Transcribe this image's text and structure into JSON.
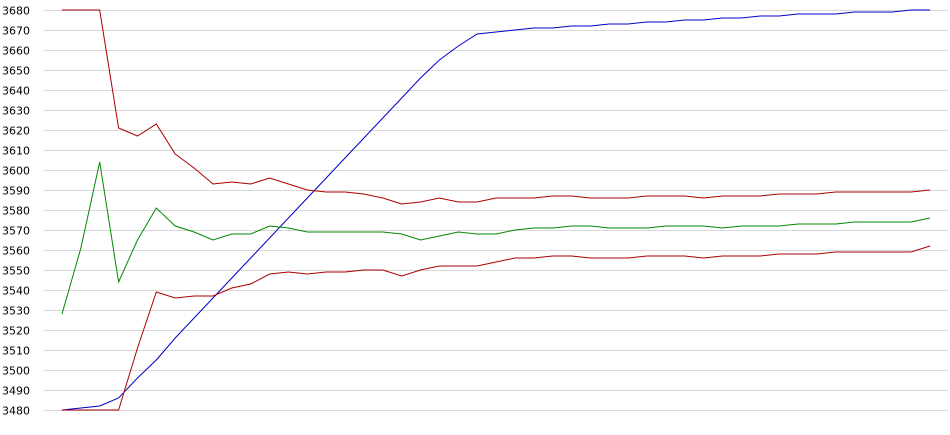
{
  "chart_data": {
    "type": "line",
    "title": "",
    "xlabel": "",
    "ylabel": "",
    "ylim": [
      3480,
      3680
    ],
    "yticks": [
      3480,
      3490,
      3500,
      3510,
      3520,
      3530,
      3540,
      3550,
      3560,
      3570,
      3580,
      3590,
      3600,
      3610,
      3620,
      3630,
      3640,
      3650,
      3660,
      3670,
      3680
    ],
    "grid": true,
    "legend": "none",
    "x": [
      1,
      2,
      3,
      4,
      5,
      6,
      7,
      8,
      9,
      10,
      11,
      12,
      13,
      14,
      15,
      16,
      17,
      18,
      19,
      20,
      21,
      22,
      23,
      24,
      25,
      26,
      27,
      28,
      29,
      30,
      31,
      32,
      33,
      34,
      35,
      36,
      37,
      38,
      39,
      40,
      41,
      42,
      43,
      44,
      45,
      46,
      47
    ],
    "series": [
      {
        "color": "#0000cc",
        "values": [
          3480,
          3481,
          3482,
          3486,
          3496,
          3505,
          3516,
          3526,
          3536,
          3546,
          3556,
          3566,
          3576,
          3586,
          3596,
          3606,
          3616,
          3626,
          3636,
          3646,
          3655,
          3662,
          3668,
          3669,
          3670,
          3671,
          3671,
          3672,
          3672,
          3673,
          3673,
          3674,
          3674,
          3675,
          3675,
          3676,
          3676,
          3677,
          3677,
          3678,
          3678,
          3678,
          3679,
          3679,
          3679,
          3680,
          3680
        ]
      },
      {
        "color": "#aa0000",
        "values": [
          3680,
          3680,
          3680,
          3621,
          3617,
          3623,
          3608,
          3601,
          3593,
          3594,
          3593,
          3596,
          3593,
          3590,
          3589,
          3589,
          3588,
          3586,
          3583,
          3584,
          3586,
          3584,
          3584,
          3586,
          3586,
          3586,
          3587,
          3587,
          3586,
          3586,
          3586,
          3587,
          3587,
          3587,
          3586,
          3587,
          3587,
          3587,
          3588,
          3588,
          3588,
          3589,
          3589,
          3589,
          3589,
          3589,
          3590
        ]
      },
      {
        "color": "#008800",
        "values": [
          3528,
          3561,
          3604,
          3544,
          3565,
          3581,
          3572,
          3569,
          3565,
          3568,
          3568,
          3572,
          3571,
          3569,
          3569,
          3569,
          3569,
          3569,
          3568,
          3565,
          3567,
          3569,
          3568,
          3568,
          3570,
          3571,
          3571,
          3572,
          3572,
          3571,
          3571,
          3571,
          3572,
          3572,
          3572,
          3571,
          3572,
          3572,
          3572,
          3573,
          3573,
          3573,
          3574,
          3574,
          3574,
          3574,
          3576
        ]
      },
      {
        "color": "#aa0000",
        "values": [
          3480,
          3480,
          3480,
          3480,
          3511,
          3539,
          3536,
          3537,
          3537,
          3541,
          3543,
          3548,
          3549,
          3548,
          3549,
          3549,
          3550,
          3550,
          3547,
          3550,
          3552,
          3552,
          3552,
          3554,
          3556,
          3556,
          3557,
          3557,
          3556,
          3556,
          3556,
          3557,
          3557,
          3557,
          3556,
          3557,
          3557,
          3557,
          3558,
          3558,
          3558,
          3559,
          3559,
          3559,
          3559,
          3559,
          3562
        ]
      }
    ]
  }
}
